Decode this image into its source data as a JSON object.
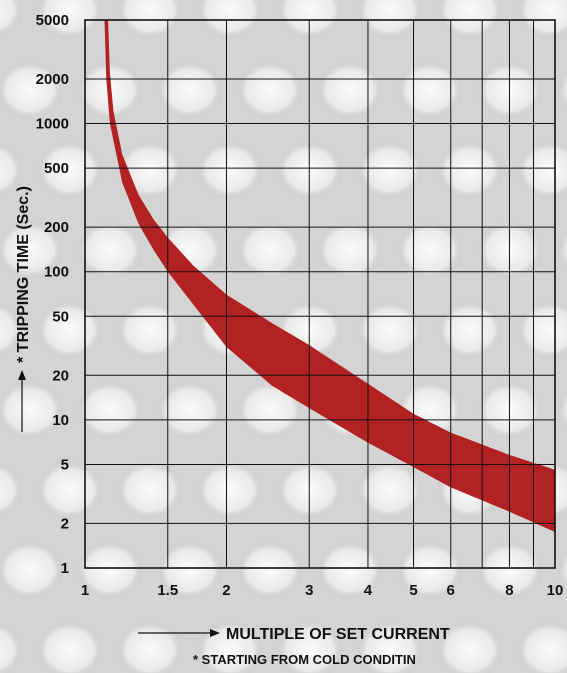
{
  "chart_data": {
    "type": "area",
    "xscale": "log",
    "yscale": "log",
    "xlim": [
      1,
      10
    ],
    "ylim": [
      1,
      5000
    ],
    "grid": true,
    "x_ticks": [
      1,
      1.5,
      2,
      3,
      4,
      5,
      6,
      8,
      10
    ],
    "x_tick_labels": [
      "1",
      "1.5",
      "2",
      "3",
      "4",
      "5",
      "6",
      "8",
      "10"
    ],
    "y_ticks": [
      1,
      2,
      5,
      10,
      20,
      50,
      100,
      200,
      500,
      1000,
      2000,
      5000
    ],
    "y_tick_labels": [
      "1",
      "2",
      "5",
      "10",
      "20",
      "50",
      "100",
      "200",
      "500",
      "1000",
      "2000",
      "5000"
    ],
    "xlabel": "MULTIPLE OF SET CURRENT",
    "ylabel": "* TRIPPING TIME (Sec.)",
    "footnote": "* STARTING FROM COLD CONDITIN",
    "band_color": "#b22222",
    "band": {
      "upper": {
        "x": [
          1.12,
          1.13,
          1.15,
          1.2,
          1.3,
          1.4,
          1.5,
          1.7,
          2,
          2.5,
          3,
          4,
          5,
          6,
          8,
          10
        ],
        "y": [
          5000,
          2200,
          1200,
          620,
          330,
          225,
          170,
          110,
          70,
          45,
          32,
          17.5,
          11,
          8.2,
          5.8,
          4.6
        ]
      },
      "lower": {
        "x": [
          1.1,
          1.11,
          1.13,
          1.2,
          1.3,
          1.4,
          1.5,
          1.7,
          2,
          2.5,
          3,
          4,
          5,
          6,
          8,
          10
        ],
        "y": [
          5000,
          2000,
          1000,
          400,
          210,
          140,
          100,
          60,
          31,
          17,
          12,
          7,
          4.8,
          3.5,
          2.4,
          1.75
        ]
      }
    }
  }
}
